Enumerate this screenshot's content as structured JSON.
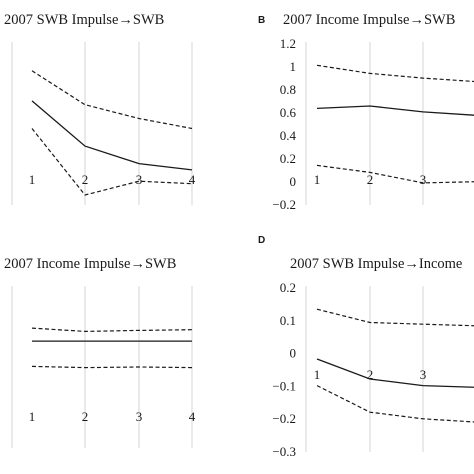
{
  "chart_data": [
    {
      "panel": "",
      "type": "line",
      "title": "2007 SWB Impulse→SWB",
      "x": [
        1,
        2,
        3,
        4
      ],
      "xtick_labels": [
        "1",
        "2",
        "3",
        "4"
      ],
      "ytick_labels": [],
      "ylim": [
        -0.05,
        1.25
      ],
      "grid": "vertical",
      "series": [
        {
          "style": "dashed",
          "values": [
            1.02,
            0.75,
            0.64,
            0.56
          ]
        },
        {
          "style": "solid",
          "values": [
            0.78,
            0.42,
            0.28,
            0.23
          ]
        },
        {
          "style": "dashed",
          "values": [
            0.56,
            0.03,
            0.14,
            0.12
          ]
        }
      ]
    },
    {
      "panel": "B",
      "type": "line",
      "title": "2007 Income Impulse→SWB",
      "x": [
        1,
        2,
        3,
        4
      ],
      "xtick_labels": [
        "1",
        "2",
        "3"
      ],
      "ytick_labels": [
        "1.2",
        "1",
        "0.8",
        "0.6",
        "0.4",
        "0.2",
        "0",
        "−0.2"
      ],
      "ylim": [
        -0.2,
        1.2
      ],
      "grid": "vertical",
      "series": [
        {
          "style": "dashed",
          "values": [
            1.0,
            0.93,
            0.89,
            0.86
          ]
        },
        {
          "style": "solid",
          "values": [
            0.63,
            0.65,
            0.6,
            0.57
          ]
        },
        {
          "style": "dashed",
          "values": [
            0.14,
            0.08,
            -0.01,
            0.0
          ]
        }
      ]
    },
    {
      "panel": "",
      "type": "line",
      "title": "2007 Income Impulse→SWB",
      "x": [
        1,
        2,
        3,
        4
      ],
      "xtick_labels": [
        "1",
        "2",
        "3",
        "4"
      ],
      "ytick_labels": [],
      "ylim": [
        -0.3,
        0.2
      ],
      "grid": "vertical",
      "series": [
        {
          "style": "dashed",
          "values": [
            0.07,
            0.06,
            0.063,
            0.065
          ]
        },
        {
          "style": "solid",
          "values": [
            0.03,
            0.03,
            0.03,
            0.03
          ]
        },
        {
          "style": "dashed",
          "values": [
            -0.048,
            -0.052,
            -0.05,
            -0.052
          ]
        }
      ]
    },
    {
      "panel": "D",
      "type": "line",
      "title": "2007 SWB Impulse→Income",
      "x": [
        1,
        2,
        3,
        4
      ],
      "xtick_labels": [
        "1",
        "2",
        "3"
      ],
      "ytick_labels": [
        "0.2",
        "0.1",
        "0",
        "−0.1",
        "−0.2",
        "−0.3"
      ],
      "ylim": [
        -0.3,
        0.2
      ],
      "grid": "vertical",
      "series": [
        {
          "style": "dashed",
          "values": [
            0.13,
            0.09,
            0.085,
            0.08
          ]
        },
        {
          "style": "solid",
          "values": [
            -0.02,
            -0.08,
            -0.1,
            -0.105
          ]
        },
        {
          "style": "dashed",
          "values": [
            -0.1,
            -0.18,
            -0.2,
            -0.21
          ]
        }
      ]
    }
  ]
}
